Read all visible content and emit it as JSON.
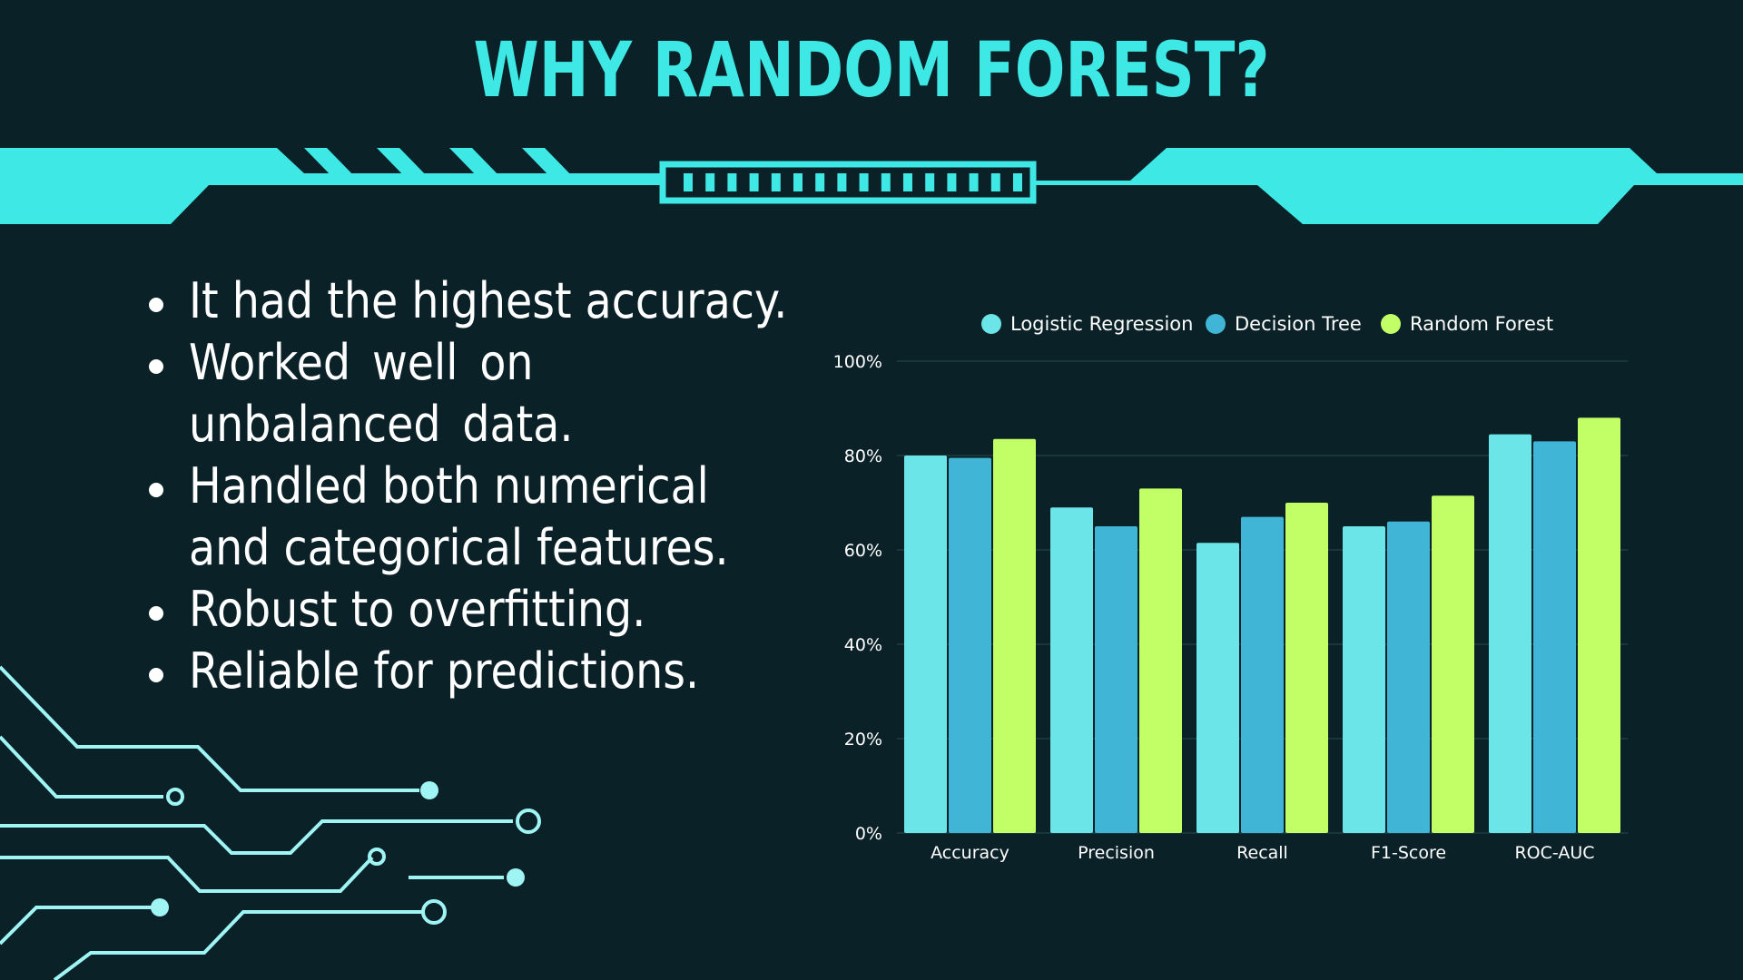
{
  "page": {
    "title": "WHY RANDOM FOREST?",
    "accent_color": "#3ee8e4",
    "background_color": "#0a2128"
  },
  "bullets": [
    "It had the highest accuracy.",
    " Worked well on unbalanced data.",
    " Handled both numerical and categorical features.",
    " Robust to overfitting.",
    " Reliable for predictions."
  ],
  "chart_data": {
    "type": "bar",
    "title": "",
    "xlabel": "",
    "ylabel": "",
    "categories": [
      "Accuracy",
      "Precision",
      "Recall",
      "F1-Score",
      "ROC-AUC"
    ],
    "series": [
      {
        "name": "Logistic Regression",
        "color": "#6be5e8",
        "values": [
          80,
          69,
          61.5,
          65,
          84.5
        ]
      },
      {
        "name": "Decision Tree",
        "color": "#40b5d5",
        "values": [
          79.5,
          65,
          67,
          66,
          83
        ]
      },
      {
        "name": "Random Forest",
        "color": "#c2ff66",
        "values": [
          83.5,
          73,
          70,
          71.5,
          88
        ]
      }
    ],
    "ylim": [
      0,
      100
    ],
    "yticks": [
      "0%",
      "20%",
      "40%",
      "60%",
      "80%",
      "100%"
    ],
    "ytick_values": [
      0,
      20,
      40,
      60,
      80,
      100
    ],
    "grid": true,
    "legend_position": "top"
  }
}
